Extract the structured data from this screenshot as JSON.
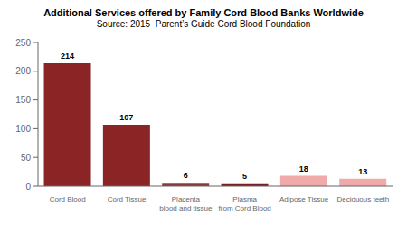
{
  "chart_data": {
    "type": "bar",
    "title": "Additional Services offered by Family Cord Blood Banks Worldwide",
    "subtitle": "Source: 2015  Parent’s Guide Cord Blood Foundation",
    "categories": [
      "Cord Blood",
      "Cord Tissue",
      "Placenta\nblood and tissue",
      "Plasma\nfrom Cord Blood",
      "Adipose Tissue",
      "Deciduous teeth"
    ],
    "values": [
      214,
      107,
      6,
      5,
      18,
      13
    ],
    "colors": [
      "#8B2525",
      "#8B2525",
      "#8B3A3A",
      "#7B2020",
      "#F0AAAA",
      "#F0AAAA"
    ],
    "ylim": [
      0,
      250
    ],
    "yticks": [
      0,
      50,
      100,
      150,
      200,
      250
    ],
    "grid": false,
    "data_labels": true
  }
}
